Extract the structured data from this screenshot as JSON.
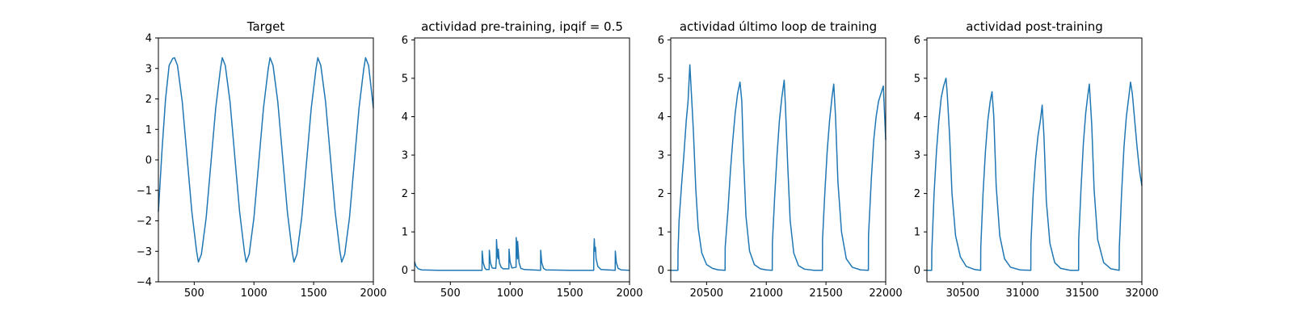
{
  "chart_data": [
    {
      "type": "line",
      "title": "Target",
      "xlim": [
        200,
        2000
      ],
      "ylim": [
        -4,
        4
      ],
      "xticks": [
        500,
        1000,
        1500,
        2000
      ],
      "yticks": [
        -4,
        -3,
        -2,
        -1,
        0,
        1,
        2,
        3,
        4
      ],
      "xticklabels": [
        "500",
        "1000",
        "1500",
        "2000"
      ],
      "yticklabels": [
        "−4",
        "−3",
        "−2",
        "−1",
        "0",
        "1",
        "2",
        "3",
        "4"
      ],
      "color": "#1f77b4",
      "series": [
        {
          "x": [
            200,
            230,
            260,
            290,
            320,
            335,
            360,
            400,
            440,
            480,
            520,
            535,
            560,
            600,
            640,
            680,
            720,
            735,
            760,
            800,
            840,
            880,
            920,
            935,
            960,
            1000,
            1040,
            1080,
            1120,
            1135,
            1160,
            1200,
            1240,
            1280,
            1320,
            1335,
            1360,
            1400,
            1440,
            1480,
            1520,
            1535,
            1560,
            1600,
            1640,
            1680,
            1720,
            1735,
            1760,
            1800,
            1840,
            1880,
            1920,
            1935,
            1960,
            2000
          ],
          "y": [
            -1.7,
            0.3,
            2.0,
            3.1,
            3.33,
            3.35,
            3.1,
            1.9,
            0.1,
            -1.7,
            -3.0,
            -3.35,
            -3.1,
            -1.9,
            -0.1,
            1.7,
            3.0,
            3.35,
            3.1,
            1.9,
            0.1,
            -1.7,
            -3.0,
            -3.35,
            -3.1,
            -1.9,
            -0.1,
            1.7,
            3.0,
            3.35,
            3.1,
            1.9,
            0.1,
            -1.7,
            -3.0,
            -3.35,
            -3.1,
            -1.9,
            -0.1,
            1.7,
            3.0,
            3.35,
            3.1,
            1.9,
            0.1,
            -1.7,
            -3.0,
            -3.35,
            -3.1,
            -1.9,
            -0.1,
            1.7,
            3.0,
            3.35,
            3.1,
            1.7
          ]
        }
      ]
    },
    {
      "type": "line",
      "title": "actividad pre-training, ipqif = 0.5",
      "xlim": [
        200,
        2000
      ],
      "ylim": [
        -0.3,
        6.05
      ],
      "xticks": [
        500,
        1000,
        1500,
        2000
      ],
      "yticks": [
        0,
        1,
        2,
        3,
        4,
        5,
        6
      ],
      "xticklabels": [
        "500",
        "1000",
        "1500",
        "2000"
      ],
      "yticklabels": [
        "0",
        "1",
        "2",
        "3",
        "4",
        "5",
        "6"
      ],
      "color": "#1f77b4",
      "series": [
        {
          "x": [
            200,
            210,
            230,
            260,
            400,
            600,
            765,
            766,
            775,
            790,
            800,
            825,
            826,
            835,
            850,
            880,
            885,
            886,
            895,
            900,
            901,
            910,
            925,
            940,
            990,
            991,
            1000,
            1015,
            1050,
            1051,
            1060,
            1062,
            1063,
            1075,
            1090,
            1120,
            1255,
            1256,
            1265,
            1280,
            1300,
            1500,
            1700,
            1701,
            1705,
            1710,
            1715,
            1720,
            1735,
            1760,
            1880,
            1881,
            1890,
            1905,
            1930,
            2000
          ],
          "y": [
            0.22,
            0.12,
            0.04,
            0.01,
            0.0,
            0.0,
            0.0,
            0.5,
            0.2,
            0.05,
            0.02,
            0.02,
            0.52,
            0.2,
            0.06,
            0.05,
            0.3,
            0.8,
            0.35,
            0.3,
            0.55,
            0.2,
            0.08,
            0.04,
            0.04,
            0.55,
            0.22,
            0.06,
            0.08,
            0.85,
            0.4,
            0.3,
            0.75,
            0.2,
            0.05,
            0.02,
            0.0,
            0.52,
            0.2,
            0.05,
            0.01,
            0.0,
            0.0,
            0.5,
            0.82,
            0.5,
            0.6,
            0.3,
            0.1,
            0.02,
            0.0,
            0.5,
            0.2,
            0.05,
            0.01,
            0.0
          ]
        }
      ]
    },
    {
      "type": "line",
      "title": "actividad último loop de training",
      "xlim": [
        20200,
        22000
      ],
      "ylim": [
        -0.3,
        6.05
      ],
      "xticks": [
        20500,
        21000,
        21500,
        22000
      ],
      "yticks": [
        0,
        1,
        2,
        3,
        4,
        5,
        6
      ],
      "xticklabels": [
        "20500",
        "21000",
        "21500",
        "22000"
      ],
      "yticklabels": [
        "0",
        "1",
        "2",
        "3",
        "4",
        "5",
        "6"
      ],
      "color": "#1f77b4",
      "series": [
        {
          "x": [
            20200,
            20260,
            20261,
            20270,
            20290,
            20310,
            20330,
            20345,
            20360,
            20380,
            20390,
            20410,
            20430,
            20460,
            20500,
            20550,
            20600,
            20655,
            20656,
            20680,
            20700,
            20720,
            20740,
            20760,
            20780,
            20795,
            20810,
            20830,
            20860,
            20900,
            20950,
            21000,
            21050,
            21051,
            21070,
            21090,
            21110,
            21130,
            21150,
            21160,
            21180,
            21200,
            21230,
            21270,
            21320,
            21400,
            21470,
            21471,
            21490,
            21510,
            21530,
            21550,
            21565,
            21580,
            21600,
            21630,
            21670,
            21720,
            21790,
            21855,
            21856,
            21880,
            21900,
            21920,
            21940,
            21960,
            21980,
            21990,
            22000
          ],
          "y": [
            0.0,
            0.0,
            0.5,
            1.3,
            2.2,
            3.0,
            3.9,
            4.4,
            5.35,
            4.2,
            3.6,
            2.1,
            1.1,
            0.45,
            0.15,
            0.05,
            0.01,
            0.0,
            0.6,
            1.6,
            2.6,
            3.4,
            4.1,
            4.6,
            4.9,
            4.4,
            2.9,
            1.4,
            0.5,
            0.15,
            0.04,
            0.01,
            0.0,
            0.7,
            1.9,
            3.0,
            3.9,
            4.5,
            4.95,
            4.3,
            2.7,
            1.3,
            0.45,
            0.12,
            0.03,
            0.0,
            0.0,
            0.8,
            2.0,
            3.1,
            3.9,
            4.5,
            4.85,
            4.0,
            2.3,
            1.0,
            0.3,
            0.08,
            0.01,
            0.0,
            0.9,
            2.4,
            3.4,
            4.0,
            4.4,
            4.6,
            4.8,
            4.1,
            3.4
          ]
        }
      ]
    },
    {
      "type": "line",
      "title": "actividad post-training",
      "xlim": [
        30200,
        32000
      ],
      "ylim": [
        -0.3,
        6.05
      ],
      "xticks": [
        30500,
        31000,
        31500,
        32000
      ],
      "yticks": [
        0,
        1,
        2,
        3,
        4,
        5,
        6
      ],
      "xticklabels": [
        "30500",
        "31000",
        "31500",
        "32000"
      ],
      "yticklabels": [
        "0",
        "1",
        "2",
        "3",
        "4",
        "5",
        "6"
      ],
      "color": "#1f77b4",
      "series": [
        {
          "x": [
            30200,
            30240,
            30241,
            30260,
            30280,
            30300,
            30320,
            30340,
            30360,
            30370,
            30390,
            30410,
            30440,
            30480,
            30530,
            30600,
            30650,
            30651,
            30670,
            30690,
            30710,
            30730,
            30745,
            30760,
            30780,
            30810,
            30850,
            30900,
            30980,
            31070,
            31071,
            31090,
            31110,
            31130,
            31150,
            31165,
            31180,
            31200,
            31230,
            31270,
            31320,
            31400,
            31470,
            31471,
            31490,
            31510,
            31530,
            31545,
            31560,
            31580,
            31600,
            31630,
            31680,
            31740,
            31810,
            31811,
            31830,
            31850,
            31870,
            31890,
            31905,
            31920,
            31940,
            31960,
            31980,
            32000
          ],
          "y": [
            0.0,
            0.0,
            0.5,
            2.0,
            3.1,
            3.9,
            4.5,
            4.8,
            5.0,
            4.6,
            3.5,
            2.0,
            0.9,
            0.35,
            0.1,
            0.02,
            0.0,
            0.6,
            2.0,
            3.1,
            3.9,
            4.4,
            4.65,
            4.0,
            2.2,
            0.9,
            0.3,
            0.08,
            0.01,
            0.0,
            0.7,
            2.0,
            2.9,
            3.5,
            3.9,
            4.3,
            3.5,
            1.8,
            0.7,
            0.2,
            0.05,
            0.0,
            0.0,
            0.8,
            2.1,
            3.3,
            4.1,
            4.5,
            4.85,
            3.8,
            2.1,
            0.8,
            0.2,
            0.04,
            0.0,
            0.6,
            2.0,
            3.2,
            4.0,
            4.5,
            4.9,
            4.6,
            3.9,
            3.2,
            2.6,
            2.2
          ]
        }
      ]
    }
  ]
}
